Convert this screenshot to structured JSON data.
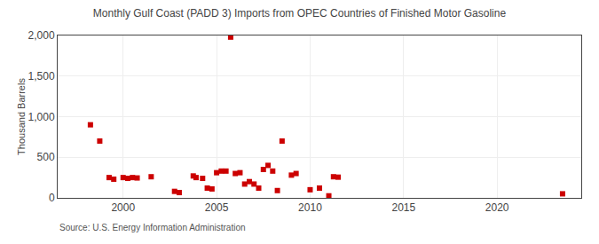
{
  "chart_data": {
    "type": "scatter",
    "title": "Monthly Gulf Coast (PADD 3) Imports from OPEC Countries of Finished Motor Gasoline",
    "ylabel": "Thousand Barrels",
    "annotations": [
      "Source: U.S. Energy Information Administration"
    ],
    "color": "#cc0000",
    "marker": "square",
    "grid": true,
    "xlim": [
      1996.5,
      2024.5
    ],
    "xticks": [
      2000,
      2005,
      2010,
      2015,
      2020
    ],
    "ylim": [
      0,
      2000
    ],
    "yticks": [
      0,
      500,
      {
        "value": 1000,
        "label": "1,000"
      },
      {
        "value": 1500,
        "label": "1,500"
      },
      {
        "value": 2000,
        "label": "2,000"
      }
    ],
    "x": [
      1998.25,
      1998.75,
      1999.25,
      1999.5,
      2000.0,
      2000.25,
      2000.5,
      2000.75,
      2001.5,
      2002.75,
      2003.0,
      2003.75,
      2003.9,
      2004.25,
      2004.5,
      2004.75,
      2005.0,
      2005.25,
      2005.5,
      2005.75,
      2006.0,
      2006.25,
      2006.5,
      2006.75,
      2007.0,
      2007.25,
      2007.5,
      2007.75,
      2008.0,
      2008.25,
      2008.5,
      2009.0,
      2009.25,
      2010.0,
      2010.5,
      2011.0,
      2011.25,
      2011.5,
      2023.5
    ],
    "values": [
      900,
      700,
      250,
      230,
      250,
      240,
      250,
      245,
      260,
      80,
      65,
      270,
      250,
      240,
      120,
      110,
      310,
      330,
      330,
      1980,
      300,
      310,
      170,
      200,
      170,
      120,
      350,
      400,
      330,
      90,
      700,
      280,
      300,
      100,
      120,
      25,
      260,
      255,
      50
    ]
  }
}
